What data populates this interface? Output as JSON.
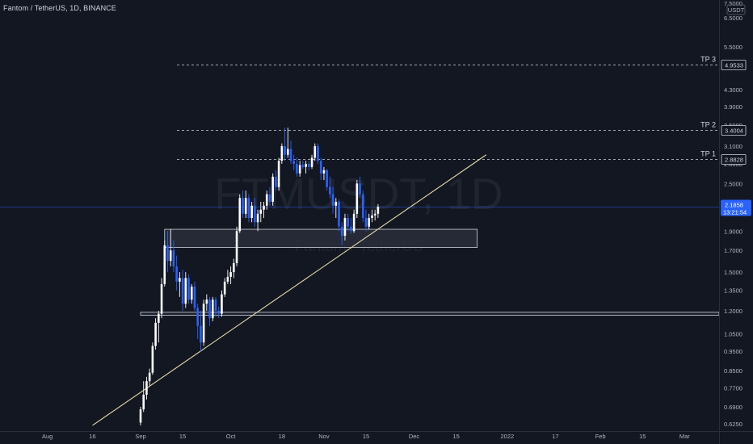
{
  "header": {
    "title": "Fantom / TetherUS, 1D, BINANCE"
  },
  "watermark": {
    "main": "FTMUSDT, 1D",
    "sub": "Fantom / TetherUS"
  },
  "price_axis": {
    "unit": "USDT",
    "current_price": "2.1858",
    "countdown": "13:21:54",
    "current_price_color": "#2962ff"
  },
  "colors": {
    "background": "#131722",
    "up_candle": "#ffffff",
    "down_candle": "#2962ff",
    "trendline": "#e3d9a8",
    "zone_fill": "#2a2e39",
    "zone_border": "#d1d4dc",
    "dashed_levels": "#d1d4dc"
  },
  "chart_data": {
    "type": "candlestick",
    "title": "Fantom / TetherUS, 1D, BINANCE",
    "y_scale": "log",
    "ylim": [
      0.6,
      7.2
    ],
    "y_ticks": [
      "7.5000",
      "6.5000",
      "5.5000",
      "4.9533",
      "4.3000",
      "3.9000",
      "3.5000",
      "3.4004",
      "3.1000",
      "2.8828",
      "2.8000",
      "2.5000",
      "2.1858",
      "1.9000",
      "1.7000",
      "1.5000",
      "1.3500",
      "1.2000",
      "1.0500",
      "0.9500",
      "0.8500",
      "0.7700",
      "0.6900",
      "0.6250"
    ],
    "x_ticks": [
      {
        "label": "15",
        "date": "2021-07-15"
      },
      {
        "label": "Aug",
        "date": "2021-08-01"
      },
      {
        "label": "16",
        "date": "2021-08-16"
      },
      {
        "label": "Sep",
        "date": "2021-09-01"
      },
      {
        "label": "15",
        "date": "2021-09-15"
      },
      {
        "label": "Oct",
        "date": "2021-10-01"
      },
      {
        "label": "18",
        "date": "2021-10-18"
      },
      {
        "label": "Nov",
        "date": "2021-11-01"
      },
      {
        "label": "15",
        "date": "2021-11-15"
      },
      {
        "label": "Dec",
        "date": "2021-12-01"
      },
      {
        "label": "15",
        "date": "2021-12-15"
      },
      {
        "label": "2022",
        "date": "2022-01-01"
      },
      {
        "label": "17",
        "date": "2022-01-17"
      },
      {
        "label": "Feb",
        "date": "2022-02-01"
      },
      {
        "label": "15",
        "date": "2022-02-15"
      },
      {
        "label": "Mar",
        "date": "2022-03-01"
      }
    ],
    "candles": [
      {
        "date": "2021-09-01",
        "o": 0.63,
        "h": 0.69,
        "l": 0.62,
        "c": 0.68
      },
      {
        "date": "2021-09-02",
        "o": 0.68,
        "h": 0.8,
        "l": 0.67,
        "c": 0.74
      },
      {
        "date": "2021-09-03",
        "o": 0.74,
        "h": 0.82,
        "l": 0.72,
        "c": 0.8
      },
      {
        "date": "2021-09-04",
        "o": 0.8,
        "h": 0.86,
        "l": 0.78,
        "c": 0.84
      },
      {
        "date": "2021-09-05",
        "o": 0.84,
        "h": 1.0,
        "l": 0.83,
        "c": 0.98
      },
      {
        "date": "2021-09-06",
        "o": 0.98,
        "h": 1.15,
        "l": 0.96,
        "c": 1.12
      },
      {
        "date": "2021-09-07",
        "o": 1.12,
        "h": 1.2,
        "l": 1.0,
        "c": 1.18
      },
      {
        "date": "2021-09-08",
        "o": 1.18,
        "h": 1.45,
        "l": 1.15,
        "c": 1.4
      },
      {
        "date": "2021-09-09",
        "o": 1.4,
        "h": 1.8,
        "l": 1.38,
        "c": 1.75
      },
      {
        "date": "2021-09-10",
        "o": 1.75,
        "h": 1.9,
        "l": 1.5,
        "c": 1.6
      },
      {
        "date": "2021-09-11",
        "o": 1.6,
        "h": 1.92,
        "l": 1.55,
        "c": 1.7
      },
      {
        "date": "2021-09-12",
        "o": 1.7,
        "h": 1.8,
        "l": 1.5,
        "c": 1.55
      },
      {
        "date": "2021-09-13",
        "o": 1.55,
        "h": 1.65,
        "l": 1.35,
        "c": 1.42
      },
      {
        "date": "2021-09-14",
        "o": 1.42,
        "h": 1.5,
        "l": 1.3,
        "c": 1.45
      },
      {
        "date": "2021-09-15",
        "o": 1.45,
        "h": 1.52,
        "l": 1.2,
        "c": 1.25
      },
      {
        "date": "2021-09-16",
        "o": 1.25,
        "h": 1.5,
        "l": 1.22,
        "c": 1.45
      },
      {
        "date": "2021-09-17",
        "o": 1.45,
        "h": 1.48,
        "l": 1.25,
        "c": 1.28
      },
      {
        "date": "2021-09-18",
        "o": 1.28,
        "h": 1.4,
        "l": 1.25,
        "c": 1.38
      },
      {
        "date": "2021-09-19",
        "o": 1.38,
        "h": 1.42,
        "l": 1.2,
        "c": 1.22
      },
      {
        "date": "2021-09-20",
        "o": 1.22,
        "h": 1.25,
        "l": 1.02,
        "c": 1.1
      },
      {
        "date": "2021-09-21",
        "o": 1.1,
        "h": 1.2,
        "l": 0.95,
        "c": 1.0
      },
      {
        "date": "2021-09-22",
        "o": 1.0,
        "h": 1.28,
        "l": 0.98,
        "c": 1.25
      },
      {
        "date": "2021-09-23",
        "o": 1.25,
        "h": 1.32,
        "l": 1.2,
        "c": 1.28
      },
      {
        "date": "2021-09-24",
        "o": 1.28,
        "h": 1.3,
        "l": 1.1,
        "c": 1.15
      },
      {
        "date": "2021-09-25",
        "o": 1.15,
        "h": 1.3,
        "l": 1.13,
        "c": 1.28
      },
      {
        "date": "2021-09-26",
        "o": 1.28,
        "h": 1.3,
        "l": 1.16,
        "c": 1.2
      },
      {
        "date": "2021-09-27",
        "o": 1.2,
        "h": 1.23,
        "l": 1.15,
        "c": 1.18
      },
      {
        "date": "2021-09-28",
        "o": 1.18,
        "h": 1.35,
        "l": 1.16,
        "c": 1.32
      },
      {
        "date": "2021-09-29",
        "o": 1.32,
        "h": 1.45,
        "l": 1.3,
        "c": 1.42
      },
      {
        "date": "2021-09-30",
        "o": 1.42,
        "h": 1.52,
        "l": 1.4,
        "c": 1.46
      },
      {
        "date": "2021-10-01",
        "o": 1.46,
        "h": 1.55,
        "l": 1.4,
        "c": 1.5
      },
      {
        "date": "2021-10-02",
        "o": 1.5,
        "h": 1.62,
        "l": 1.45,
        "c": 1.58
      },
      {
        "date": "2021-10-03",
        "o": 1.58,
        "h": 1.95,
        "l": 1.55,
        "c": 1.9
      },
      {
        "date": "2021-10-04",
        "o": 1.9,
        "h": 2.35,
        "l": 1.88,
        "c": 2.3
      },
      {
        "date": "2021-10-05",
        "o": 2.3,
        "h": 2.4,
        "l": 2.05,
        "c": 2.1
      },
      {
        "date": "2021-10-06",
        "o": 2.1,
        "h": 2.4,
        "l": 2.05,
        "c": 2.3
      },
      {
        "date": "2021-10-07",
        "o": 2.3,
        "h": 2.35,
        "l": 2.0,
        "c": 2.05
      },
      {
        "date": "2021-10-08",
        "o": 2.05,
        "h": 2.25,
        "l": 2.0,
        "c": 2.2
      },
      {
        "date": "2021-10-09",
        "o": 2.2,
        "h": 2.3,
        "l": 1.95,
        "c": 2.0
      },
      {
        "date": "2021-10-10",
        "o": 2.0,
        "h": 2.15,
        "l": 1.9,
        "c": 2.1
      },
      {
        "date": "2021-10-11",
        "o": 2.1,
        "h": 2.25,
        "l": 2.0,
        "c": 2.15
      },
      {
        "date": "2021-10-12",
        "o": 2.15,
        "h": 2.25,
        "l": 2.05,
        "c": 2.2
      },
      {
        "date": "2021-10-13",
        "o": 2.2,
        "h": 2.4,
        "l": 2.15,
        "c": 2.35
      },
      {
        "date": "2021-10-14",
        "o": 2.35,
        "h": 2.45,
        "l": 2.2,
        "c": 2.25
      },
      {
        "date": "2021-10-15",
        "o": 2.25,
        "h": 2.65,
        "l": 2.2,
        "c": 2.6
      },
      {
        "date": "2021-10-16",
        "o": 2.6,
        "h": 2.7,
        "l": 2.4,
        "c": 2.45
      },
      {
        "date": "2021-10-17",
        "o": 2.45,
        "h": 2.9,
        "l": 2.4,
        "c": 2.85
      },
      {
        "date": "2021-10-18",
        "o": 2.85,
        "h": 3.15,
        "l": 2.8,
        "c": 3.1
      },
      {
        "date": "2021-10-19",
        "o": 3.1,
        "h": 3.45,
        "l": 2.85,
        "c": 2.95
      },
      {
        "date": "2021-10-20",
        "o": 2.95,
        "h": 3.45,
        "l": 2.9,
        "c": 3.05
      },
      {
        "date": "2021-10-21",
        "o": 3.05,
        "h": 3.2,
        "l": 2.8,
        "c": 2.85
      },
      {
        "date": "2021-10-22",
        "o": 2.85,
        "h": 2.95,
        "l": 2.7,
        "c": 2.8
      },
      {
        "date": "2021-10-23",
        "o": 2.8,
        "h": 2.9,
        "l": 2.6,
        "c": 2.65
      },
      {
        "date": "2021-10-24",
        "o": 2.65,
        "h": 2.85,
        "l": 2.6,
        "c": 2.78
      },
      {
        "date": "2021-10-25",
        "o": 2.78,
        "h": 2.85,
        "l": 2.72,
        "c": 2.75
      },
      {
        "date": "2021-10-26",
        "o": 2.75,
        "h": 2.85,
        "l": 2.65,
        "c": 2.8
      },
      {
        "date": "2021-10-27",
        "o": 2.8,
        "h": 2.85,
        "l": 2.7,
        "c": 2.75
      },
      {
        "date": "2021-10-28",
        "o": 2.75,
        "h": 2.95,
        "l": 2.72,
        "c": 2.9
      },
      {
        "date": "2021-10-29",
        "o": 2.9,
        "h": 3.15,
        "l": 2.85,
        "c": 3.1
      },
      {
        "date": "2021-10-30",
        "o": 3.1,
        "h": 3.15,
        "l": 2.8,
        "c": 2.85
      },
      {
        "date": "2021-10-31",
        "o": 2.85,
        "h": 2.9,
        "l": 2.55,
        "c": 2.65
      },
      {
        "date": "2021-11-01",
        "o": 2.65,
        "h": 2.75,
        "l": 2.55,
        "c": 2.7
      },
      {
        "date": "2021-11-02",
        "o": 2.7,
        "h": 2.72,
        "l": 2.4,
        "c": 2.45
      },
      {
        "date": "2021-11-03",
        "o": 2.45,
        "h": 2.6,
        "l": 2.3,
        "c": 2.35
      },
      {
        "date": "2021-11-04",
        "o": 2.35,
        "h": 2.45,
        "l": 2.1,
        "c": 2.2
      },
      {
        "date": "2021-11-05",
        "o": 2.2,
        "h": 2.3,
        "l": 2.05,
        "c": 2.25
      },
      {
        "date": "2021-11-06",
        "o": 2.25,
        "h": 2.28,
        "l": 1.9,
        "c": 1.95
      },
      {
        "date": "2021-11-07",
        "o": 1.95,
        "h": 2.0,
        "l": 1.75,
        "c": 1.85
      },
      {
        "date": "2021-11-08",
        "o": 1.85,
        "h": 2.1,
        "l": 1.8,
        "c": 2.05
      },
      {
        "date": "2021-11-09",
        "o": 2.05,
        "h": 2.1,
        "l": 1.9,
        "c": 1.95
      },
      {
        "date": "2021-11-10",
        "o": 1.95,
        "h": 2.05,
        "l": 1.87,
        "c": 1.9
      },
      {
        "date": "2021-11-11",
        "o": 1.9,
        "h": 2.15,
        "l": 1.88,
        "c": 2.1
      },
      {
        "date": "2021-11-12",
        "o": 2.1,
        "h": 2.55,
        "l": 2.05,
        "c": 2.5
      },
      {
        "date": "2021-11-13",
        "o": 2.5,
        "h": 2.6,
        "l": 2.3,
        "c": 2.35
      },
      {
        "date": "2021-11-14",
        "o": 2.35,
        "h": 2.4,
        "l": 2.0,
        "c": 2.05
      },
      {
        "date": "2021-11-15",
        "o": 2.05,
        "h": 2.15,
        "l": 1.9,
        "c": 1.95
      },
      {
        "date": "2021-11-16",
        "o": 1.95,
        "h": 2.1,
        "l": 1.92,
        "c": 2.05
      },
      {
        "date": "2021-11-17",
        "o": 2.05,
        "h": 2.15,
        "l": 2.0,
        "c": 2.08
      },
      {
        "date": "2021-11-18",
        "o": 2.08,
        "h": 2.15,
        "l": 2.02,
        "c": 2.1
      },
      {
        "date": "2021-11-19",
        "o": 2.1,
        "h": 2.22,
        "l": 2.05,
        "c": 2.1858
      }
    ],
    "horizontal_levels": [
      {
        "label": "TP 3",
        "value": 4.9533,
        "price_label": "4.9533"
      },
      {
        "label": "TP 2",
        "value": 3.4004,
        "price_label": "3.4004"
      },
      {
        "label": "TP 1",
        "value": 2.8828,
        "price_label": "2.8828"
      }
    ],
    "zones": [
      {
        "from_date": "2021-09-09",
        "to_date": "2021-12-22",
        "top": 1.92,
        "bottom": 1.73
      },
      {
        "from_date": "2021-09-01",
        "to_date": "2022-03-15",
        "top": 1.19,
        "bottom": 1.17
      }
    ],
    "trendline": {
      "start": {
        "date": "2021-08-16",
        "value": 0.62
      },
      "end": {
        "date": "2021-12-25",
        "value": 2.95
      }
    },
    "current_price": 2.1858
  }
}
